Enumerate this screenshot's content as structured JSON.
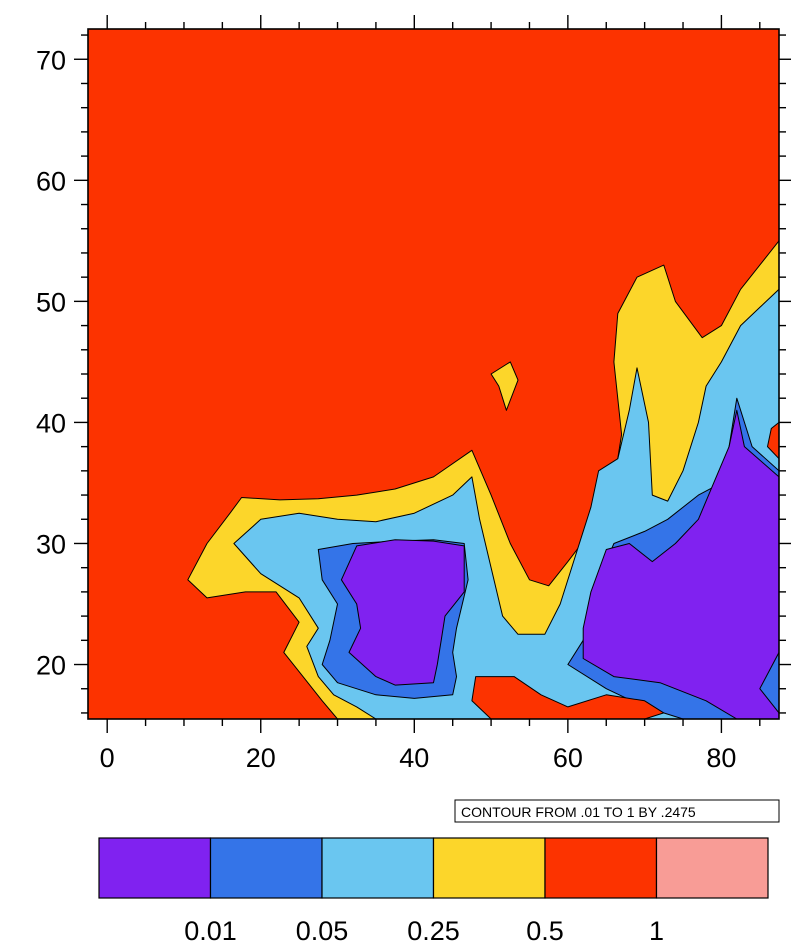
{
  "chart_data": {
    "type": "contour",
    "title": "",
    "xlabel": "",
    "ylabel": "",
    "xlim": [
      -2.5,
      87.5
    ],
    "ylim": [
      15.5,
      72.5
    ],
    "x_ticks": [
      0,
      20,
      40,
      60,
      80
    ],
    "y_ticks": [
      20,
      30,
      40,
      50,
      60,
      70
    ],
    "contour_info": "CONTOUR FROM .01 TO 1 BY .2475",
    "colorbar": {
      "levels": [
        "0.01",
        "0.05",
        "0.25",
        "0.5",
        "1"
      ],
      "colors": [
        "#8022f0",
        "#3474e8",
        "#6ac6f0",
        "#fcd62a",
        "#fc3300",
        "#f89c96"
      ]
    },
    "regions": [
      {
        "level": 4,
        "color": "#fcd62a",
        "points": [
          [
            10.5,
            27
          ],
          [
            13,
            30
          ],
          [
            16,
            32.5
          ],
          [
            17.5,
            33.8
          ],
          [
            22.5,
            33.6
          ],
          [
            27.5,
            33.7
          ],
          [
            32.5,
            34
          ],
          [
            37.5,
            34.5
          ],
          [
            42.5,
            35.5
          ],
          [
            47.5,
            37.7
          ],
          [
            50,
            34
          ],
          [
            52.5,
            30
          ],
          [
            55,
            27
          ],
          [
            57.5,
            26.5
          ],
          [
            60,
            28.5
          ],
          [
            63,
            31
          ],
          [
            66,
            35
          ],
          [
            67,
            39
          ],
          [
            66,
            45
          ],
          [
            66.5,
            49
          ],
          [
            69,
            52
          ],
          [
            72.5,
            53
          ],
          [
            74,
            50
          ],
          [
            77.5,
            47
          ],
          [
            80,
            48
          ],
          [
            82.5,
            51
          ],
          [
            85,
            53
          ],
          [
            87.5,
            55
          ],
          [
            87.5,
            15.5
          ],
          [
            30,
            15.5
          ],
          [
            28,
            17
          ],
          [
            25.5,
            19
          ],
          [
            23,
            21
          ],
          [
            25,
            23.5
          ],
          [
            22,
            26
          ],
          [
            18,
            26
          ],
          [
            13,
            25.5
          ]
        ]
      },
      {
        "level": 4,
        "color": "#fcd62a",
        "points": [
          [
            50,
            44
          ],
          [
            52.5,
            45
          ],
          [
            53.5,
            43.5
          ],
          [
            52,
            41
          ],
          [
            51,
            43
          ]
        ]
      },
      {
        "level": 3,
        "color": "#6ac6f0",
        "points": [
          [
            16.5,
            30
          ],
          [
            20,
            32
          ],
          [
            25,
            32.5
          ],
          [
            30,
            32
          ],
          [
            35,
            31.8
          ],
          [
            40,
            32.5
          ],
          [
            45,
            34
          ],
          [
            47.5,
            35.5
          ],
          [
            48.5,
            32
          ],
          [
            50,
            28
          ],
          [
            51.5,
            24
          ],
          [
            53.5,
            22.5
          ],
          [
            57,
            22.5
          ],
          [
            59,
            25
          ],
          [
            61,
            29
          ],
          [
            63,
            33
          ],
          [
            64,
            36
          ],
          [
            66.5,
            37
          ],
          [
            68,
            41
          ],
          [
            69,
            44.5
          ],
          [
            70.5,
            40
          ],
          [
            71,
            34
          ],
          [
            73,
            33.5
          ],
          [
            75,
            36
          ],
          [
            77,
            40
          ],
          [
            78,
            43
          ],
          [
            80,
            45
          ],
          [
            82.5,
            48
          ],
          [
            85,
            49.5
          ],
          [
            87.5,
            51
          ],
          [
            87.5,
            15.5
          ],
          [
            35,
            15.5
          ],
          [
            32.5,
            16.5
          ],
          [
            29.5,
            17.5
          ],
          [
            27.5,
            19
          ],
          [
            26,
            21.5
          ],
          [
            27.5,
            23
          ],
          [
            25,
            25.5
          ],
          [
            20,
            27.5
          ]
        ]
      },
      {
        "level": 2,
        "color": "#3474e8",
        "points": [
          [
            27.5,
            29.5
          ],
          [
            32,
            30
          ],
          [
            37.5,
            30.2
          ],
          [
            42.5,
            30.3
          ],
          [
            46.5,
            30
          ],
          [
            47,
            27
          ],
          [
            45.5,
            23
          ],
          [
            45,
            21
          ],
          [
            45.5,
            19
          ],
          [
            45,
            17.5
          ],
          [
            40,
            17.2
          ],
          [
            35,
            17.5
          ],
          [
            30,
            18.5
          ],
          [
            28,
            20
          ],
          [
            29,
            22
          ],
          [
            30,
            25
          ],
          [
            28,
            27
          ]
        ]
      },
      {
        "level": 2,
        "color": "#3474e8",
        "points": [
          [
            60,
            20
          ],
          [
            62,
            22
          ],
          [
            64,
            27
          ],
          [
            66,
            30
          ],
          [
            70,
            31
          ],
          [
            73,
            32
          ],
          [
            77,
            34
          ],
          [
            80,
            35
          ],
          [
            81,
            38
          ],
          [
            82,
            42
          ],
          [
            84,
            38
          ],
          [
            87.5,
            36
          ],
          [
            87.5,
            15.5
          ],
          [
            75,
            15.5
          ],
          [
            70,
            16.5
          ],
          [
            65,
            18
          ]
        ]
      },
      {
        "level": 1,
        "color": "#8022f0",
        "points": [
          [
            30.5,
            27
          ],
          [
            32.5,
            29.8
          ],
          [
            37.5,
            30.3
          ],
          [
            42.5,
            30.2
          ],
          [
            46.5,
            29.8
          ],
          [
            46.5,
            26
          ],
          [
            44,
            24
          ],
          [
            43.5,
            22
          ],
          [
            43,
            20
          ],
          [
            42.5,
            18.5
          ],
          [
            37.5,
            18.3
          ],
          [
            35,
            19
          ],
          [
            31.5,
            21
          ],
          [
            33,
            23
          ],
          [
            32.5,
            25
          ]
        ]
      },
      {
        "level": 1,
        "color": "#8022f0",
        "points": [
          [
            62,
            23
          ],
          [
            63,
            26
          ],
          [
            65,
            29.5
          ],
          [
            68,
            30
          ],
          [
            71,
            28.5
          ],
          [
            74,
            30
          ],
          [
            77,
            32
          ],
          [
            79,
            35
          ],
          [
            81,
            38
          ],
          [
            82,
            41
          ],
          [
            83,
            38
          ],
          [
            87.5,
            35.5
          ],
          [
            87.5,
            21
          ],
          [
            85,
            18
          ],
          [
            87.5,
            16
          ],
          [
            87.5,
            15.5
          ],
          [
            82,
            15.5
          ],
          [
            78,
            17
          ],
          [
            72,
            18.5
          ],
          [
            66,
            19
          ],
          [
            62,
            20.5
          ]
        ]
      },
      {
        "level": 5,
        "color": "#fc3300",
        "points": [
          [
            48,
            19
          ],
          [
            53,
            19
          ],
          [
            56.5,
            17.5
          ],
          [
            60,
            16.5
          ],
          [
            65,
            17.5
          ],
          [
            70,
            17
          ],
          [
            72.5,
            16
          ],
          [
            70,
            15.5
          ],
          [
            50,
            15.5
          ],
          [
            47.5,
            17
          ]
        ]
      },
      {
        "level": 5,
        "color": "#fc3300",
        "points": [
          [
            86,
            38
          ],
          [
            87.5,
            37
          ],
          [
            87.5,
            40
          ],
          [
            86.5,
            39.5
          ]
        ]
      }
    ]
  },
  "colorbar_title": ""
}
